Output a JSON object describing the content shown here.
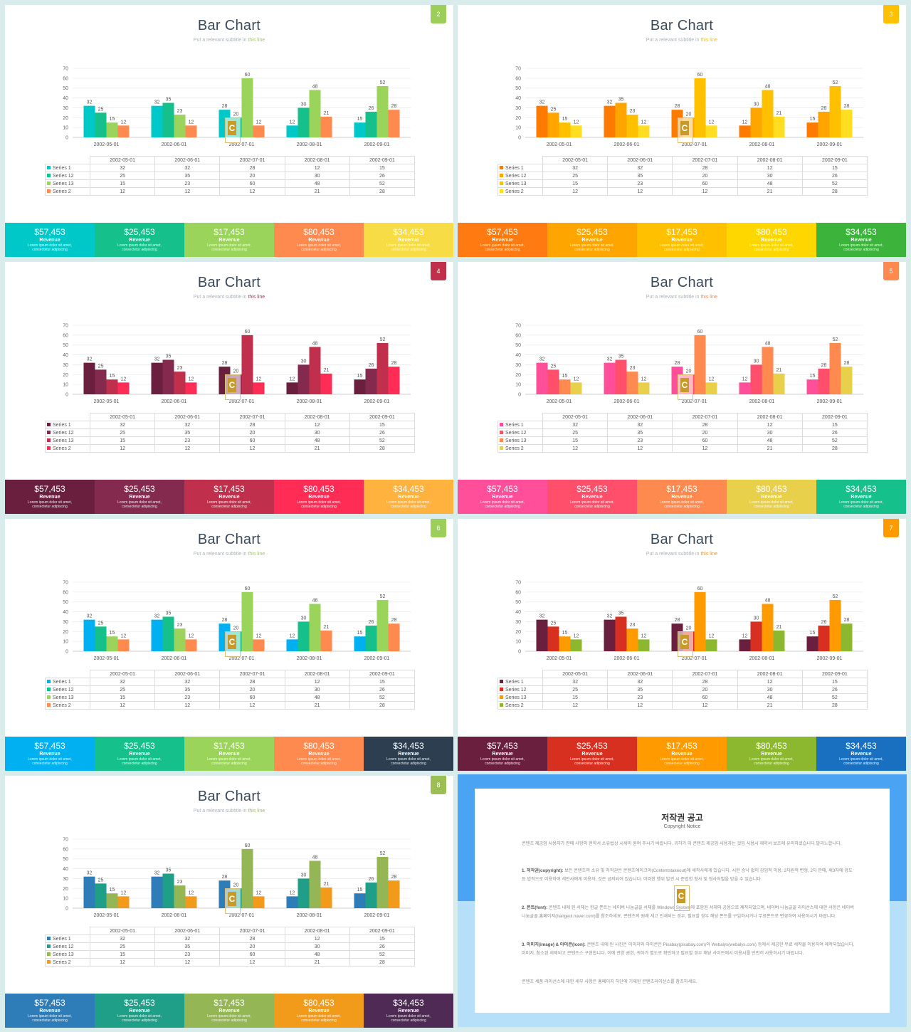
{
  "chart_data": {
    "type": "bar",
    "categories": [
      "2002-05-01",
      "2002-06-01",
      "2002-07-01",
      "2002-08-01",
      "2002-09-01"
    ],
    "series": [
      {
        "name": "Series 1",
        "values": [
          32,
          32,
          28,
          12,
          15
        ]
      },
      {
        "name": "Series 12",
        "values": [
          25,
          35,
          20,
          30,
          26
        ]
      },
      {
        "name": "Series 13",
        "values": [
          15,
          23,
          60,
          48,
          52
        ]
      },
      {
        "name": "Series 2",
        "values": [
          12,
          12,
          12,
          21,
          28
        ]
      }
    ],
    "ylim": [
      0,
      70
    ],
    "yticks": [
      "0",
      "10",
      "20",
      "30",
      "40",
      "50",
      "60",
      "70"
    ],
    "grid": true
  },
  "slide_title": "Bar Chart",
  "subtitle_prefix": "Put a relevant subtitle in ",
  "subtitle_highlight": "this line",
  "footer_items": [
    {
      "amount": "$57,453",
      "label": "Revenue",
      "desc1": "Lorem ipsum dolor sit amet,",
      "desc2": "consectetur adipiscing"
    },
    {
      "amount": "$25,453",
      "label": "Revenue",
      "desc1": "Lorem ipsum dolor sit amet,",
      "desc2": "consectetur adipiscing"
    },
    {
      "amount": "$17,453",
      "label": "Revenue",
      "desc1": "Lorem ipsum dolor sit amet,",
      "desc2": "consectetur adipiscing"
    },
    {
      "amount": "$80,453",
      "label": "Revenue",
      "desc1": "Lorem ipsum dolor sit amet,",
      "desc2": "consectetur adipiscing"
    },
    {
      "amount": "$34,453",
      "label": "Revenue",
      "desc1": "Lorem ipsum dolor sit amet,",
      "desc2": "consectetur adipiscing"
    }
  ],
  "watermark_letter": "C",
  "slides": [
    {
      "page": "2",
      "tag_color": "#9ccf5a",
      "highlight_color": "#9ccf5a",
      "series_colors": [
        "#00c8c8",
        "#16c08a",
        "#9bd45a",
        "#ff8a50"
      ],
      "footer_colors": [
        "#00c8c8",
        "#16c08a",
        "#9bd45a",
        "#ff8a50",
        "#f7dc45"
      ]
    },
    {
      "page": "3",
      "tag_color": "#ffc000",
      "highlight_color": "#ffc000",
      "series_colors": [
        "#ff7a00",
        "#ffa500",
        "#ffc000",
        "#ffdd20"
      ],
      "footer_colors": [
        "#ff7a10",
        "#ffa500",
        "#ffc000",
        "#ffd700",
        "#3cb43c"
      ]
    },
    {
      "page": "4",
      "tag_color": "#c0304c",
      "highlight_color": "#c0304c",
      "series_colors": [
        "#6b1f3f",
        "#842a4e",
        "#c0304c",
        "#ff2d55"
      ],
      "footer_colors": [
        "#6b1f3f",
        "#842a4e",
        "#c0304c",
        "#ff2d55",
        "#ffb23d"
      ]
    },
    {
      "page": "5",
      "tag_color": "#ff8a50",
      "highlight_color": "#ff8a50",
      "series_colors": [
        "#ff4f9a",
        "#ff4f6a",
        "#ff8a50",
        "#e8d04a"
      ],
      "footer_colors": [
        "#ff4f9a",
        "#ff4f6a",
        "#ff8a50",
        "#e8d04a",
        "#16c08a"
      ]
    },
    {
      "page": "6",
      "tag_color": "#9ccf5a",
      "highlight_color": "#9ccf5a",
      "series_colors": [
        "#00b0f0",
        "#16c08a",
        "#9bd45a",
        "#ff8a50"
      ],
      "footer_colors": [
        "#00b0f0",
        "#16c08a",
        "#9bd45a",
        "#ff8a50",
        "#2c3e50"
      ]
    },
    {
      "page": "7",
      "tag_color": "#ff9b00",
      "highlight_color": "#ff9b00",
      "series_colors": [
        "#6b1f3f",
        "#d83020",
        "#ff9b00",
        "#8cb830"
      ],
      "footer_colors": [
        "#6b1f3f",
        "#d83020",
        "#ff9b00",
        "#8cb830",
        "#1a70c0"
      ]
    },
    {
      "page": "8",
      "tag_color": "#9cbf55",
      "highlight_color": "#9cbf55",
      "series_colors": [
        "#2e7db8",
        "#1f9e88",
        "#94b654",
        "#f29a1a"
      ],
      "footer_colors": [
        "#2e7db8",
        "#1f9e88",
        "#94b654",
        "#f29a1a",
        "#4e2a55"
      ]
    }
  ],
  "copyright": {
    "title": "저작권 공고",
    "subtitle": "Copyright Notice",
    "intro": "콘텐츠 제공업 사용자가 판매 사항의 현약서 소유법상 시세이 원여 주시기 바랍니다. 귀하가 이 콘텐츠 제공업 사용자는 것입 사용시 재약서 보조에 유의하셨습니다 발리노합니다.",
    "p1_label": "1. 저작권(copyright):",
    "p1": "보든 콘텐츠의 소유 및 저작권은 콘텐츠에이크아(Contentstakeout)에 세작사에게 있습니다. 시한 승낙 없이 감임적 이용, 2차원적 변형, 2차 판매, 제3자에 양도 등 법적으로 이용하여 세인사에게 이용자, 것은 금지되어 있습니다. 이러한 행위 발견 시 준법한 형사 및 형사처벌을 받을 수 있습니다.",
    "p2_label": "2. 폰트(font):",
    "p2": "콘텐츠 내에 된 서체는 한글 폰트는 네이버 나눔글꼴 서체를 Windows System에 포함된 서체와 공용으로 제작되었으며, 네이버 나눔글꼴 라이선스에 대한 사항은 네이버 나눔글꼴 홈페이지(hangeul.naver.com)를 참조하세요. 콘텐츠의 원래 세고 인쇄되는 경우, 필요할 경우 해당 폰트를 구입하시거나 무료폰트로 변경하여 사용하시기 바랍니다.",
    "p3_label": "3. 이미지(image) & 아이콘(icon):",
    "p3": "콘텐츠 내에 된 사진은 이미지와 아이콘은 Pixabay(pixabay.com)와 Webalys(webalys.com) 등에서 제공한 무료 세작물 이용하여 제작되었습니다. 이미지, 참소된 세제되고 콘텐츠스 구현합니다. 이에 관한 권한, 귀하가 별도로 확인하고 필요할 경우 해당 사이트에서 이용시를 빈번히 사용하시기 바랍니다.",
    "closing": "콘텐츠 세품 라이선스에 대한 세부 사항은 홈페이지 하단에 기재된 콘텐츠라이선스를 참조하세요."
  }
}
